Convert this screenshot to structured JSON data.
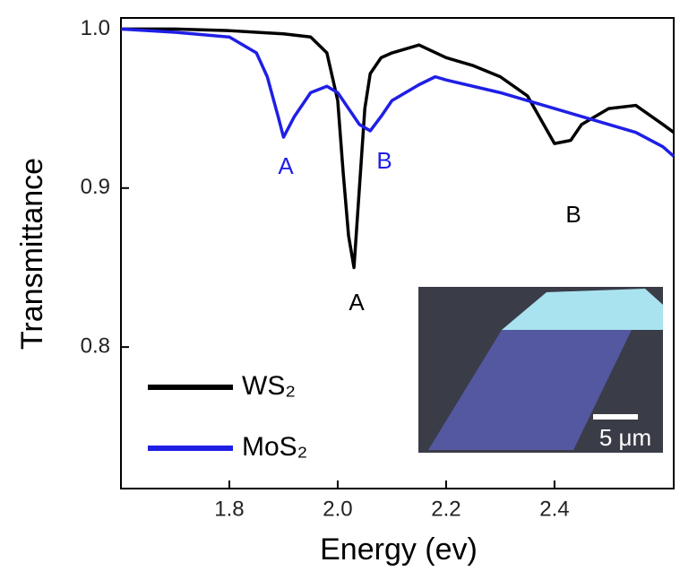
{
  "chart_data": {
    "type": "line",
    "xlabel": "Energy (ev)",
    "ylabel": "Transmittance",
    "xlim": [
      1.6,
      2.62
    ],
    "ylim": [
      0.711,
      1.007
    ],
    "xticks": [
      1.8,
      {
        "value": 2,
        "label": "2.0"
      },
      2.2,
      2.4
    ],
    "yticks": [
      {
        "value": 1,
        "label": "1.0"
      },
      0.9,
      0.8
    ],
    "legend": "lower left",
    "series": [
      {
        "name": "WS₂",
        "color": "#000000",
        "x": [
          1.6,
          1.7,
          1.8,
          1.85,
          1.9,
          1.95,
          1.98,
          2.0,
          2.01,
          2.02,
          2.03,
          2.04,
          2.05,
          2.06,
          2.08,
          2.1,
          2.15,
          2.2,
          2.25,
          2.3,
          2.35,
          2.38,
          2.4,
          2.43,
          2.45,
          2.5,
          2.55,
          2.6,
          2.62
        ],
        "values": [
          1.0,
          1.0,
          0.999,
          0.998,
          0.997,
          0.995,
          0.985,
          0.955,
          0.91,
          0.87,
          0.85,
          0.9,
          0.95,
          0.972,
          0.982,
          0.985,
          0.99,
          0.982,
          0.977,
          0.97,
          0.958,
          0.94,
          0.928,
          0.93,
          0.94,
          0.95,
          0.952,
          0.94,
          0.935
        ]
      },
      {
        "name": "MoS₂",
        "color": "#1f1fe6",
        "x": [
          1.6,
          1.7,
          1.8,
          1.85,
          1.87,
          1.89,
          1.9,
          1.92,
          1.95,
          1.98,
          2.0,
          2.02,
          2.04,
          2.06,
          2.08,
          2.1,
          2.15,
          2.18,
          2.2,
          2.3,
          2.4,
          2.5,
          2.55,
          2.6,
          2.62
        ],
        "values": [
          1.0,
          0.998,
          0.995,
          0.985,
          0.97,
          0.945,
          0.932,
          0.945,
          0.96,
          0.964,
          0.96,
          0.95,
          0.94,
          0.936,
          0.945,
          0.955,
          0.965,
          0.97,
          0.968,
          0.96,
          0.95,
          0.94,
          0.935,
          0.926,
          0.92
        ]
      }
    ],
    "annotations": [
      "A",
      "B",
      "A",
      "B",
      "5 μm"
    ]
  }
}
